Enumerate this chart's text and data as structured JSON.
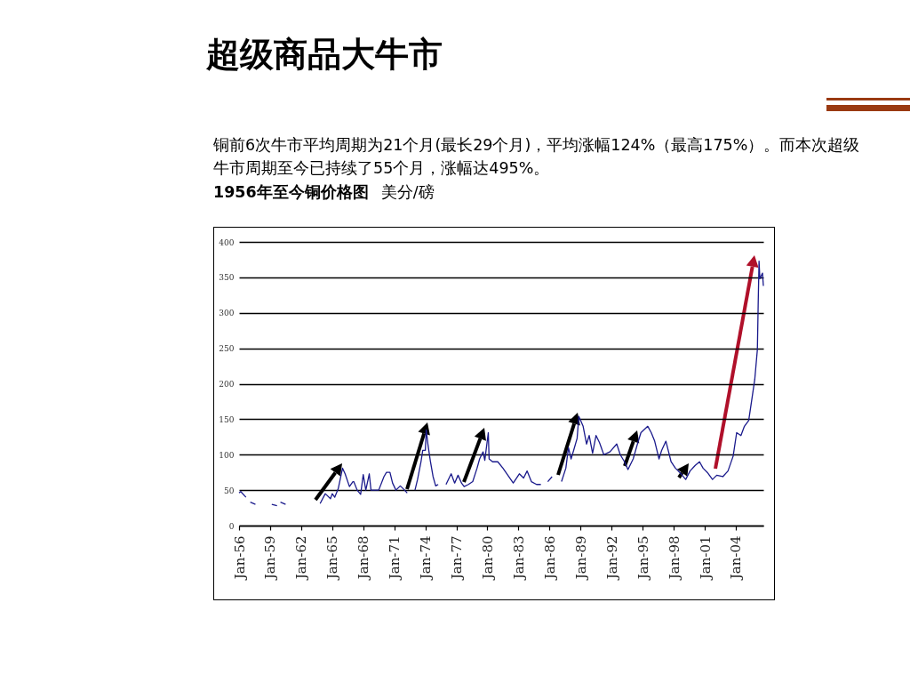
{
  "chart_data": {
    "type": "line",
    "title": "超级商品大牛市",
    "subtitle": "铜前6次牛市平均周期为21个月(最长29个月)，平均涨幅124%（最高175%）。而本次超级牛市周期至今已持续了55个月，涨幅达495%。",
    "annotations": [
      "1956年至今铜价格图",
      "美分/磅"
    ],
    "x": [
      "1956-01",
      "1956-03",
      "1956-09",
      "1956-10",
      "1957-02",
      "1957-08",
      "1957-09",
      "1959-03",
      "1959-09",
      "1959-10",
      "1960-01",
      "1960-07",
      "1960-08",
      "1963-11",
      "1964-05",
      "1964-11",
      "1965-01",
      "1965-04",
      "1965-08",
      "1966-01",
      "1966-04",
      "1966-09",
      "1967-01",
      "1967-02",
      "1967-06",
      "1967-10",
      "1968-01",
      "1968-04",
      "1968-08",
      "1968-10",
      "1969-01",
      "1969-07",
      "1970-01",
      "1970-04",
      "1970-08",
      "1970-11",
      "1971-03",
      "1971-08",
      "1972-01",
      "1972-04",
      "1972-05",
      "1973-01",
      "1973-04",
      "1973-08",
      "1973-10",
      "1974-01",
      "1974-02",
      "1974-04",
      "1974-07",
      "1974-10",
      "1975-01",
      "1975-04",
      "1975-05",
      "1976-01",
      "1976-07",
      "1976-11",
      "1977-03",
      "1977-07",
      "1977-10",
      "1978-03",
      "1978-08",
      "1979-01",
      "1979-04",
      "1979-08",
      "1979-10",
      "1980-02",
      "1980-03",
      "1980-07",
      "1981-01",
      "1981-07",
      "1982-07",
      "1983-02",
      "1983-07",
      "1983-11",
      "1984-04",
      "1984-10",
      "1985-03",
      "1985-04",
      "1985-11",
      "1986-04",
      "1986-05",
      "1987-03",
      "1987-08",
      "1987-11",
      "1988-02",
      "1988-05",
      "1988-09",
      "1988-11",
      "1989-04",
      "1989-08",
      "1989-11",
      "1990-03",
      "1990-07",
      "1990-11",
      "1991-04",
      "1991-11",
      "1992-07",
      "1992-11",
      "1993-04",
      "1993-08",
      "1994-02",
      "1994-07",
      "1994-11",
      "1995-07",
      "1995-11",
      "1996-03",
      "1996-08",
      "1996-11",
      "1997-04",
      "1997-10",
      "1998-03",
      "1998-08",
      "1999-03",
      "1999-08",
      "2000-02",
      "2000-07",
      "2000-11",
      "2001-04",
      "2001-10",
      "2002-03",
      "2002-10",
      "2003-04",
      "2003-10",
      "2004-02",
      "2004-07",
      "2004-11",
      "2005-04",
      "2005-08",
      "2005-11",
      "2006-02",
      "2006-03",
      "2006-04",
      "2006-05",
      "2006-08",
      "2006-09"
    ],
    "series": [
      {
        "color": "#1a1a8c",
        "values": [
          46,
          48,
          40,
          null,
          33,
          30,
          null,
          30,
          28,
          null,
          33,
          30,
          null,
          31,
          45,
          38,
          45,
          40,
          52,
          81,
          73,
          55,
          62,
          62,
          50,
          44,
          72,
          50,
          73,
          50,
          50,
          50,
          69,
          75,
          75,
          60,
          50,
          56,
          50,
          46,
          null,
          50,
          65,
          90,
          106,
          106,
          135,
          115,
          90,
          69,
          56,
          58,
          null,
          58,
          73,
          60,
          71,
          60,
          55,
          58,
          62,
          81,
          94,
          104,
          92,
          131,
          94,
          90,
          90,
          81,
          60,
          73,
          67,
          77,
          62,
          58,
          58,
          null,
          62,
          69,
          null,
          62,
          81,
          110,
          94,
          106,
          123,
          154,
          140,
          115,
          127,
          102,
          127,
          117,
          100,
          104,
          115,
          100,
          90,
          79,
          94,
          115,
          131,
          140,
          131,
          119,
          94,
          106,
          119,
          90,
          81,
          75,
          65,
          77,
          85,
          90,
          81,
          75,
          65,
          71,
          69,
          77,
          98,
          131,
          127,
          140,
          148,
          181,
          206,
          248,
          310,
          373,
          348,
          356,
          338
        ]
      }
    ],
    "xlim": [
      "1956-01",
      "2006-09"
    ],
    "xticks": [
      {
        "value": "1956-01",
        "label": "Jan-56"
      },
      {
        "value": "1959-01",
        "label": "Jan-59"
      },
      {
        "value": "1962-01",
        "label": "Jan-62"
      },
      {
        "value": "1965-01",
        "label": "Jan-65"
      },
      {
        "value": "1968-01",
        "label": "Jan-68"
      },
      {
        "value": "1971-01",
        "label": "Jan-71"
      },
      {
        "value": "1974-01",
        "label": "Jan-74"
      },
      {
        "value": "1977-01",
        "label": "Jan-77"
      },
      {
        "value": "1980-01",
        "label": "Jan-80"
      },
      {
        "value": "1983-01",
        "label": "Jan-83"
      },
      {
        "value": "1986-01",
        "label": "Jan-86"
      },
      {
        "value": "1989-01",
        "label": "Jan-89"
      },
      {
        "value": "1992-01",
        "label": "Jan-92"
      },
      {
        "value": "1995-01",
        "label": "Jan-95"
      },
      {
        "value": "1998-01",
        "label": "Jan-98"
      },
      {
        "value": "2001-01",
        "label": "Jan-01"
      },
      {
        "value": "2004-01",
        "label": "Jan-04"
      }
    ],
    "ylim": [
      0,
      400
    ],
    "yticks": [
      0,
      50,
      100,
      150,
      200,
      250,
      300,
      350,
      400
    ],
    "grid": "y",
    "marker": "none",
    "line_style": "solid"
  }
}
